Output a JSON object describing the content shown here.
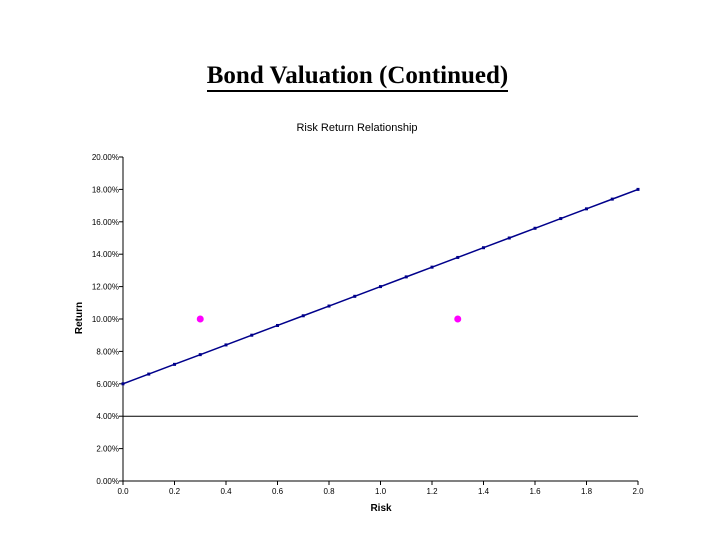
{
  "slide": {
    "title": "Bond Valuation (Continued)"
  },
  "chart_data": {
    "type": "line",
    "title": "Risk Return Relationship",
    "xlabel": "Risk",
    "ylabel": "Return",
    "xlim": [
      0.0,
      2.0
    ],
    "ylim": [
      0,
      20
    ],
    "x_ticks": [
      0.0,
      0.2,
      0.4,
      0.6,
      0.8,
      1.0,
      1.2,
      1.4,
      1.6,
      1.8,
      2.0
    ],
    "x_tick_labels": [
      "0.0",
      "0.2",
      "0.4",
      "0.6",
      "0.8",
      "1.0",
      "1.2",
      "1.4",
      "1.6",
      "1.8",
      "2.0"
    ],
    "y_ticks": [
      0,
      2,
      4,
      6,
      8,
      10,
      12,
      14,
      16,
      18,
      20
    ],
    "y_tick_labels": [
      "0.00%",
      "2.00%",
      "4.00%",
      "6.00%",
      "8.00%",
      "10.00%",
      "12.00%",
      "14.00%",
      "16.00%",
      "18.00%",
      "20.00%"
    ],
    "grid": false,
    "reference_line": {
      "y": 4
    },
    "series": [
      {
        "type": "line",
        "color": "#00008b",
        "x": [
          0.0,
          0.1,
          0.2,
          0.3,
          0.4,
          0.5,
          0.6,
          0.7,
          0.8,
          0.9,
          1.0,
          1.1,
          1.2,
          1.3,
          1.4,
          1.5,
          1.6,
          1.7,
          1.8,
          1.9,
          2.0
        ],
        "y": [
          6.0,
          6.6,
          7.2,
          7.8,
          8.4,
          9.0,
          9.6,
          10.2,
          10.8,
          11.4,
          12.0,
          12.6,
          13.2,
          13.8,
          14.4,
          15.0,
          15.6,
          16.2,
          16.8,
          17.4,
          18.0
        ]
      },
      {
        "type": "scatter",
        "color": "#ff00ff",
        "x": [
          0.3,
          1.3
        ],
        "y": [
          10.0,
          10.0
        ]
      }
    ]
  }
}
